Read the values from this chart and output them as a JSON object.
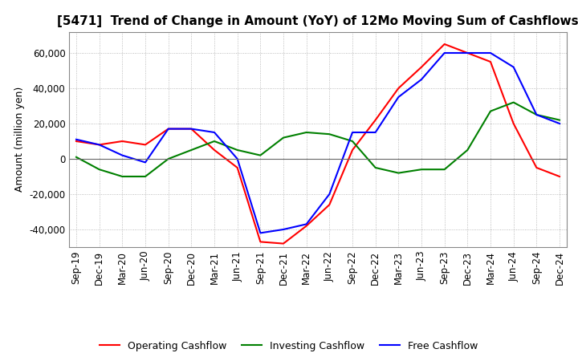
{
  "title": "[5471]  Trend of Change in Amount (YoY) of 12Mo Moving Sum of Cashflows",
  "ylabel": "Amount (million yen)",
  "ylim": [
    -50000,
    72000
  ],
  "yticks": [
    -40000,
    -20000,
    0,
    20000,
    40000,
    60000
  ],
  "x_labels": [
    "Sep-19",
    "Dec-19",
    "Mar-20",
    "Jun-20",
    "Sep-20",
    "Dec-20",
    "Mar-21",
    "Jun-21",
    "Sep-21",
    "Dec-21",
    "Mar-22",
    "Jun-22",
    "Sep-22",
    "Dec-22",
    "Mar-23",
    "Jun-23",
    "Sep-23",
    "Dec-23",
    "Mar-24",
    "Jun-24",
    "Sep-24",
    "Dec-24"
  ],
  "operating": [
    10000,
    8000,
    10000,
    8000,
    17000,
    17000,
    5000,
    -5000,
    -47000,
    -48000,
    -38000,
    -26000,
    5000,
    22000,
    40000,
    52000,
    65000,
    60000,
    55000,
    20000,
    -5000,
    -10000
  ],
  "investing": [
    1000,
    -6000,
    -10000,
    -10000,
    0,
    5000,
    10000,
    5000,
    2000,
    12000,
    15000,
    14000,
    10000,
    -5000,
    -8000,
    -6000,
    -6000,
    5000,
    27000,
    32000,
    25000,
    22000
  ],
  "free": [
    11000,
    8000,
    2000,
    -2000,
    17000,
    17000,
    15000,
    0,
    -42000,
    -40000,
    -37000,
    -20000,
    15000,
    15000,
    35000,
    45000,
    60000,
    60000,
    60000,
    52000,
    25000,
    20000
  ],
  "operating_color": "#ff0000",
  "investing_color": "#008000",
  "free_color": "#0000ff",
  "background_color": "#ffffff",
  "grid_color": "#aaaaaa",
  "title_fontsize": 11,
  "axis_fontsize": 9,
  "tick_fontsize": 8.5
}
